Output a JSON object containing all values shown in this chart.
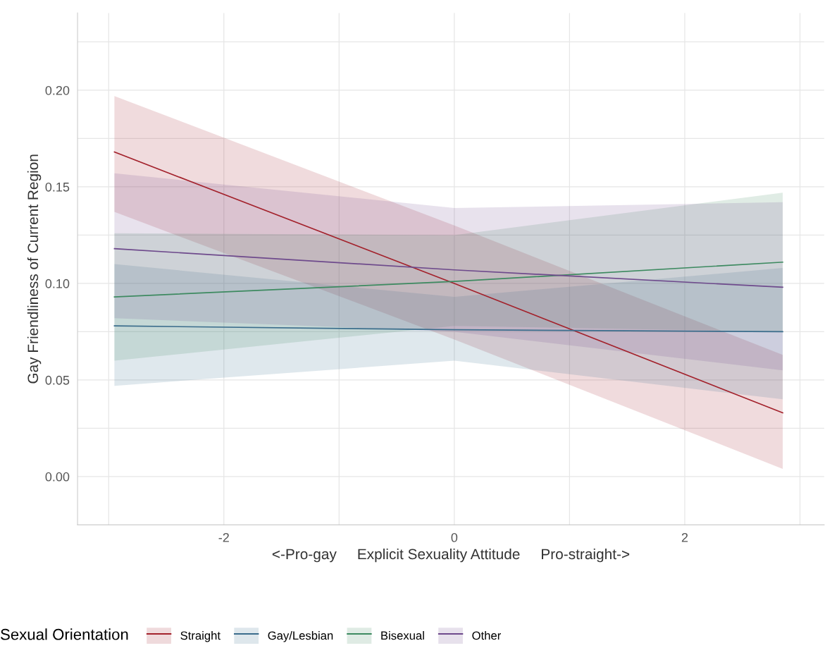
{
  "chart_data": {
    "type": "line",
    "xlabel": "<-Pro-gay     Explicit Sexuality Attitude     Pro-straight->",
    "ylabel": "Gay Friendliness of Current Region",
    "legend_title": "Sexual Orientation",
    "legend": "bottom",
    "grid": true,
    "x": [
      -2.95,
      0,
      2.85
    ],
    "xlim": [
      -3.27,
      3.21
    ],
    "ylim": [
      -0.025,
      0.24
    ],
    "xticks": [
      {
        "value": -3,
        "label": null
      },
      -2,
      {
        "value": -1,
        "label": null
      },
      0,
      {
        "value": 1,
        "label": null
      },
      2,
      {
        "value": 3,
        "label": null
      }
    ],
    "yticks": [
      {
        "value": 0,
        "label": "0.00"
      },
      {
        "value": 0.025,
        "label": null
      },
      {
        "value": 0.05,
        "label": "0.05"
      },
      {
        "value": 0.075,
        "label": null
      },
      {
        "value": 0.1,
        "label": "0.10"
      },
      {
        "value": 0.125,
        "label": null
      },
      {
        "value": 0.15,
        "label": "0.15"
      },
      {
        "value": 0.175,
        "label": null
      },
      {
        "value": 0.2,
        "label": "0.20"
      },
      {
        "value": 0.225,
        "label": null
      }
    ],
    "series": [
      {
        "name": "Straight",
        "color": "#a3222c",
        "values": [
          0.168,
          0.1,
          0.033
        ],
        "lower": [
          0.137,
          0.071,
          0.004
        ],
        "upper": [
          0.197,
          0.13,
          0.063
        ]
      },
      {
        "name": "Gay/Lesbian",
        "color": "#3b6d8c",
        "values": [
          0.078,
          0.076,
          0.075
        ],
        "lower": [
          0.047,
          0.06,
          0.04
        ],
        "upper": [
          0.11,
          0.093,
          0.108
        ]
      },
      {
        "name": "Bisexual",
        "color": "#3d8a60",
        "values": [
          0.093,
          0.101,
          0.111
        ],
        "lower": [
          0.06,
          0.078,
          0.075
        ],
        "upper": [
          0.126,
          0.125,
          0.147
        ]
      },
      {
        "name": "Other",
        "color": "#6e4a8c",
        "values": [
          0.118,
          0.107,
          0.098
        ],
        "lower": [
          0.082,
          0.075,
          0.055
        ],
        "upper": [
          0.157,
          0.139,
          0.142
        ]
      }
    ]
  }
}
